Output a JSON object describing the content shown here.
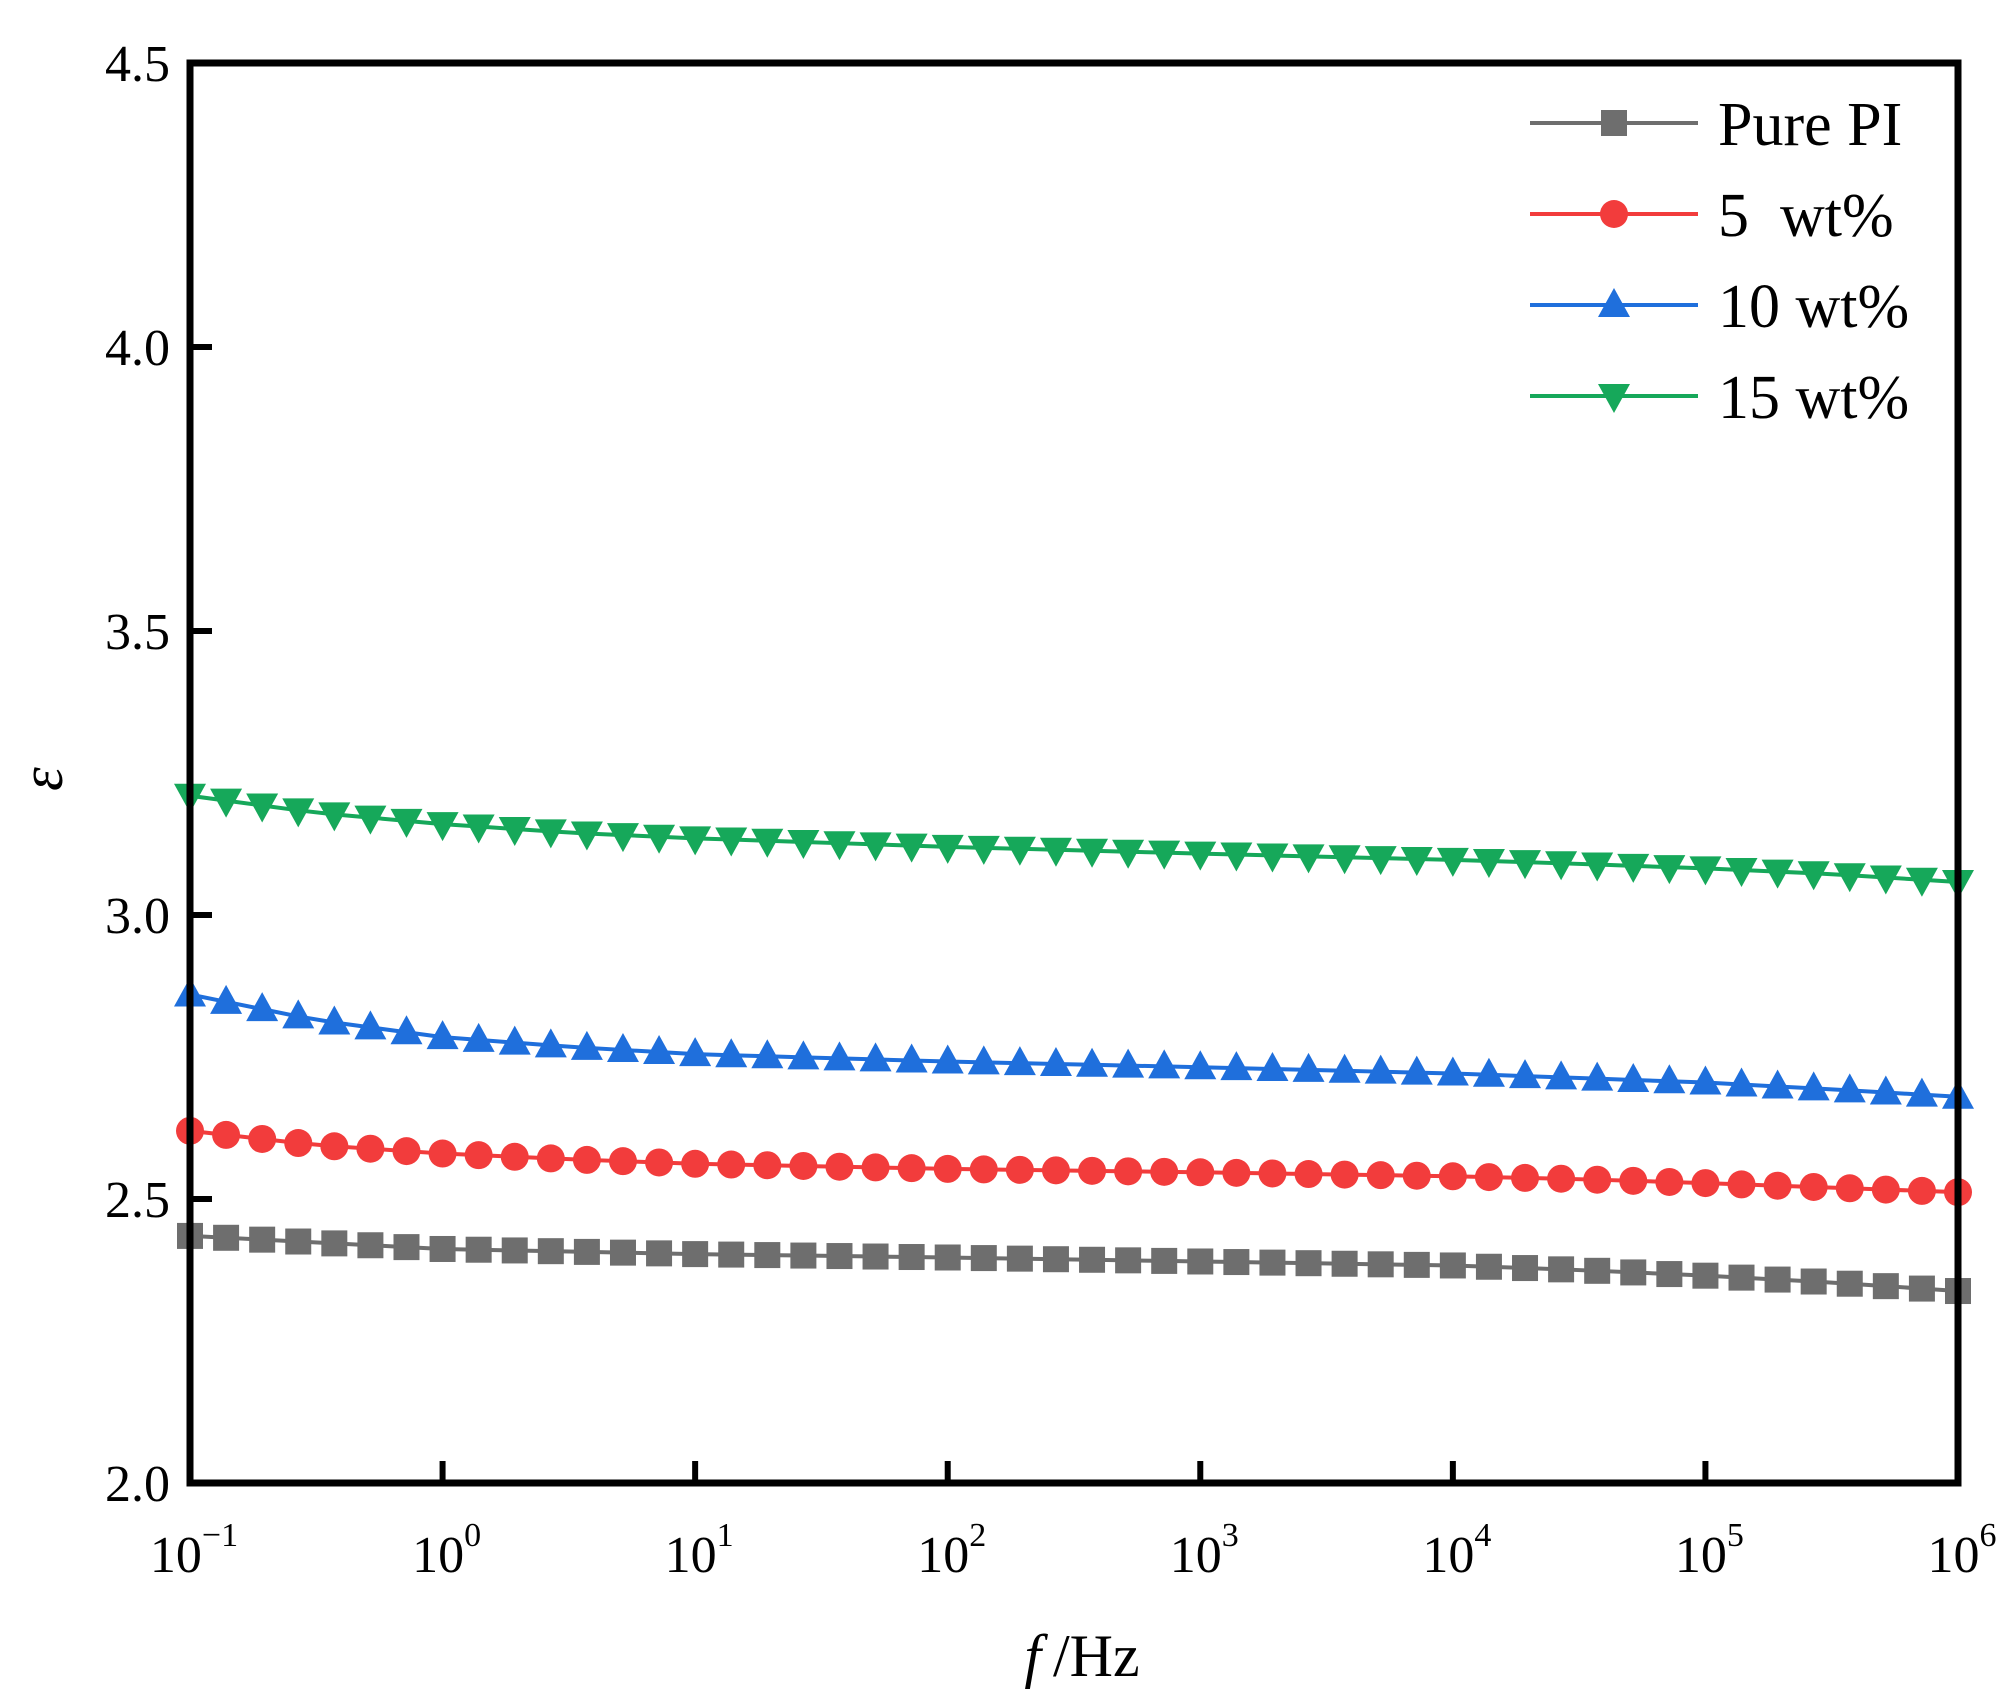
{
  "chart_data": {
    "type": "line",
    "title": "",
    "xlabel": {
      "italic": "f",
      "rest": "/Hz"
    },
    "ylabel": "ε",
    "xscale": "log",
    "xlim_log10": [
      -1,
      6
    ],
    "ylim": [
      2.0,
      4.5
    ],
    "x_ticks": [
      {
        "base": "10",
        "exp": "−1"
      },
      {
        "base": "10",
        "exp": "0"
      },
      {
        "base": "10",
        "exp": "1"
      },
      {
        "base": "10",
        "exp": "2"
      },
      {
        "base": "10",
        "exp": "3"
      },
      {
        "base": "10",
        "exp": "4"
      },
      {
        "base": "10",
        "exp": "5"
      },
      {
        "base": "10",
        "exp": "6"
      }
    ],
    "y_ticks": [
      "2.0",
      "2.5",
      "3.0",
      "3.5",
      "4.0",
      "4.5"
    ],
    "y_tick_values": [
      2.0,
      2.5,
      3.0,
      3.5,
      4.0,
      4.5
    ],
    "grid": false,
    "legend_position": "top-right",
    "points_per_decade": 7,
    "series": [
      {
        "name": "Pure PI",
        "color": "#6e6e6e",
        "marker": "square",
        "anchors_log10f": [
          -1,
          0,
          1,
          2,
          3,
          4,
          4.5,
          5,
          5.5,
          6
        ],
        "anchors_value": [
          2.435,
          2.412,
          2.403,
          2.397,
          2.39,
          2.383,
          2.375,
          2.365,
          2.353,
          2.338
        ]
      },
      {
        "name": "5  wt%",
        "color": "#f23c3c",
        "marker": "circle",
        "anchors_log10f": [
          -1,
          -0.5,
          0,
          0.5,
          1,
          2,
          3,
          4,
          4.5,
          5,
          5.5,
          6
        ],
        "anchors_value": [
          2.62,
          2.595,
          2.58,
          2.57,
          2.562,
          2.553,
          2.547,
          2.54,
          2.535,
          2.528,
          2.52,
          2.512
        ]
      },
      {
        "name": "10 wt%",
        "color": "#1f6fdc",
        "marker": "triangle-up",
        "anchors_log10f": [
          -1,
          -0.5,
          0,
          0.5,
          1,
          2,
          3,
          4,
          4.5,
          5,
          5.5,
          6
        ],
        "anchors_value": [
          2.86,
          2.815,
          2.785,
          2.768,
          2.755,
          2.742,
          2.732,
          2.721,
          2.713,
          2.705,
          2.693,
          2.68
        ]
      },
      {
        "name": "15 wt%",
        "color": "#16a85a",
        "marker": "triangle-down",
        "anchors_log10f": [
          -1,
          -0.5,
          0,
          0.5,
          1,
          2,
          3,
          4,
          4.5,
          5,
          5.5,
          6
        ],
        "anchors_value": [
          3.21,
          3.18,
          3.16,
          3.145,
          3.135,
          3.12,
          3.108,
          3.097,
          3.09,
          3.082,
          3.072,
          3.058
        ]
      }
    ]
  }
}
